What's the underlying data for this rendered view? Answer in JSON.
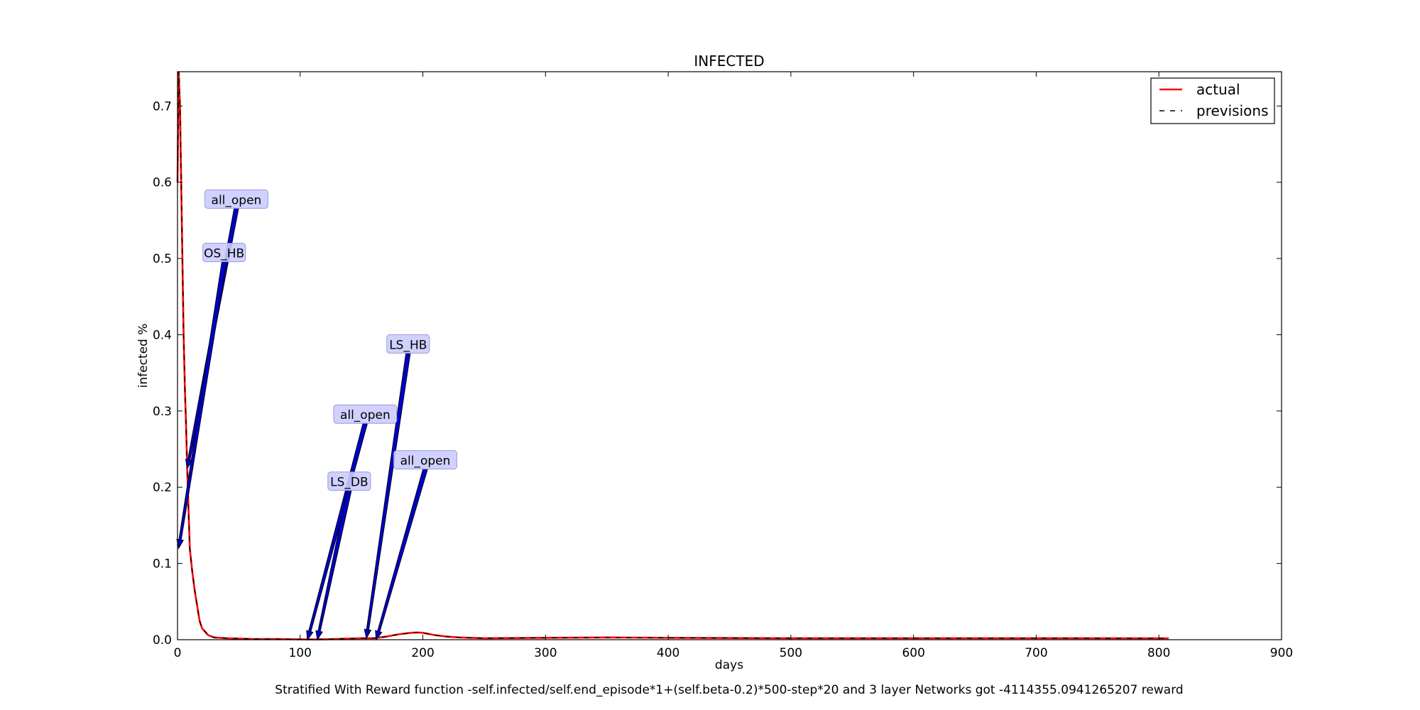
{
  "chart_data": {
    "type": "line",
    "title": "INFECTED",
    "xlabel": "days",
    "ylabel": "infected %",
    "xlim": [
      0,
      900
    ],
    "ylim": [
      0,
      0.745
    ],
    "xticks": [
      0,
      100,
      200,
      300,
      400,
      500,
      600,
      700,
      800,
      900
    ],
    "yticks": [
      0.0,
      0.1,
      0.2,
      0.3,
      0.4,
      0.5,
      0.6,
      0.7
    ],
    "xtick_labels": [
      "0",
      "100",
      "200",
      "300",
      "400",
      "500",
      "600",
      "700",
      "800",
      "900"
    ],
    "ytick_labels": [
      "0.0",
      "0.1",
      "0.2",
      "0.3",
      "0.4",
      "0.5",
      "0.6",
      "0.7"
    ],
    "grid": false,
    "legend_position": "top-right",
    "series": [
      {
        "name": "actual",
        "color": "#ff0000",
        "style": "solid",
        "x": [
          0,
          1,
          2,
          3,
          4,
          5,
          6,
          7,
          8,
          10,
          12,
          14,
          16,
          18,
          20,
          25,
          30,
          40,
          50,
          60,
          80,
          100,
          110,
          120,
          130,
          140,
          150,
          160,
          170,
          180,
          190,
          195,
          200,
          210,
          220,
          230,
          250,
          300,
          350,
          400,
          500,
          600,
          700,
          808
        ],
        "y": [
          0.6,
          0.745,
          0.7,
          0.6,
          0.5,
          0.4,
          0.33,
          0.28,
          0.22,
          0.12,
          0.09,
          0.065,
          0.045,
          0.025,
          0.015,
          0.006,
          0.003,
          0.002,
          0.0015,
          0.001,
          0.0008,
          0.0005,
          0.0004,
          0.0006,
          0.001,
          0.0015,
          0.002,
          0.002,
          0.004,
          0.007,
          0.009,
          0.0095,
          0.009,
          0.006,
          0.004,
          0.003,
          0.002,
          0.0025,
          0.003,
          0.0025,
          0.002,
          0.002,
          0.002,
          0.0018
        ]
      },
      {
        "name": "previsions",
        "color": "#000000",
        "style": "dashed",
        "x": [
          0,
          1,
          2,
          3,
          4,
          5,
          6,
          7,
          8,
          10,
          12,
          14,
          16,
          18,
          20,
          25,
          30,
          40,
          50,
          60,
          80,
          100,
          110,
          120,
          130,
          140,
          150,
          160,
          170,
          180,
          190,
          195,
          200,
          210,
          220,
          230,
          250,
          300,
          350,
          400,
          500,
          600,
          700,
          808
        ],
        "y": [
          0.6,
          0.745,
          0.7,
          0.6,
          0.5,
          0.4,
          0.33,
          0.28,
          0.22,
          0.12,
          0.09,
          0.065,
          0.045,
          0.025,
          0.015,
          0.006,
          0.003,
          0.002,
          0.0015,
          0.001,
          0.0008,
          0.0005,
          0.0004,
          0.0006,
          0.001,
          0.0015,
          0.002,
          0.002,
          0.004,
          0.007,
          0.009,
          0.0095,
          0.009,
          0.006,
          0.004,
          0.003,
          0.002,
          0.0025,
          0.003,
          0.0025,
          0.002,
          0.002,
          0.002,
          0.0018
        ]
      }
    ],
    "annotations": [
      {
        "text": "all_open",
        "label_x": 48,
        "label_y": 0.577,
        "arrow_x": 8,
        "arrow_y": 0.225
      },
      {
        "text": "OS_HB",
        "label_x": 38,
        "label_y": 0.507,
        "arrow_x": 1,
        "arrow_y": 0.12
      },
      {
        "text": "LS_HB",
        "label_x": 188,
        "label_y": 0.387,
        "arrow_x": 154,
        "arrow_y": 0.002
      },
      {
        "text": "all_open",
        "label_x": 153,
        "label_y": 0.295,
        "arrow_x": 106,
        "arrow_y": 0.0
      },
      {
        "text": "all_open",
        "label_x": 202,
        "label_y": 0.235,
        "arrow_x": 162,
        "arrow_y": 0.0
      },
      {
        "text": "LS_DB",
        "label_x": 140,
        "label_y": 0.207,
        "arrow_x": 114,
        "arrow_y": 0.0
      }
    ],
    "footer": "Stratified With Reward function -self.infected/self.end_episode*1+(self.beta-0.2)*500-step*20 and 3 layer Networks got -4114355.0941265207 reward",
    "annotation_box_color": "#ccccff",
    "annotation_arrow_color": "#0000cc"
  }
}
